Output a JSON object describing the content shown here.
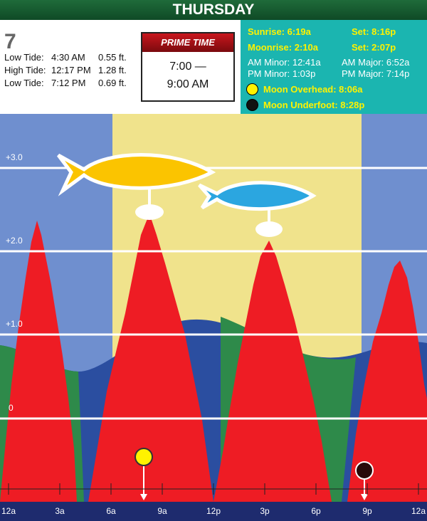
{
  "header": {
    "day": "THURSDAY"
  },
  "day_number": "7",
  "tides": [
    {
      "label": "Low Tide:",
      "time": "4:30 AM",
      "height": "0.55 ft."
    },
    {
      "label": "High Tide:",
      "time": "12:17 PM",
      "height": "1.28 ft."
    },
    {
      "label": "Low Tide:",
      "time": "7:12 PM",
      "height": "0.69 ft."
    }
  ],
  "prime_time": {
    "title": "PRIME TIME",
    "start": "7:00 —",
    "end": "9:00 AM"
  },
  "sun_moon": {
    "sunrise": "Sunrise: 6:19a",
    "sunset": "Set: 8:16p",
    "moonrise": "Moonrise: 2:10a",
    "moonset": "Set: 2:07p",
    "am_minor": "AM Minor: 12:41a",
    "am_major": "AM Major: 6:52a",
    "pm_minor": "PM Minor: 1:03p",
    "pm_major": "PM Major: 7:14p",
    "moon_overhead": "Moon Overhead: 8:06a",
    "moon_underfoot": "Moon Underfoot: 8:28p"
  },
  "chart": {
    "y_labels": [
      "+3.0",
      "+2.0",
      "+1.0",
      "0"
    ],
    "x_labels": [
      "12a",
      "3a",
      "6a",
      "9a",
      "12p",
      "3p",
      "6p",
      "9p",
      "12a"
    ]
  }
}
